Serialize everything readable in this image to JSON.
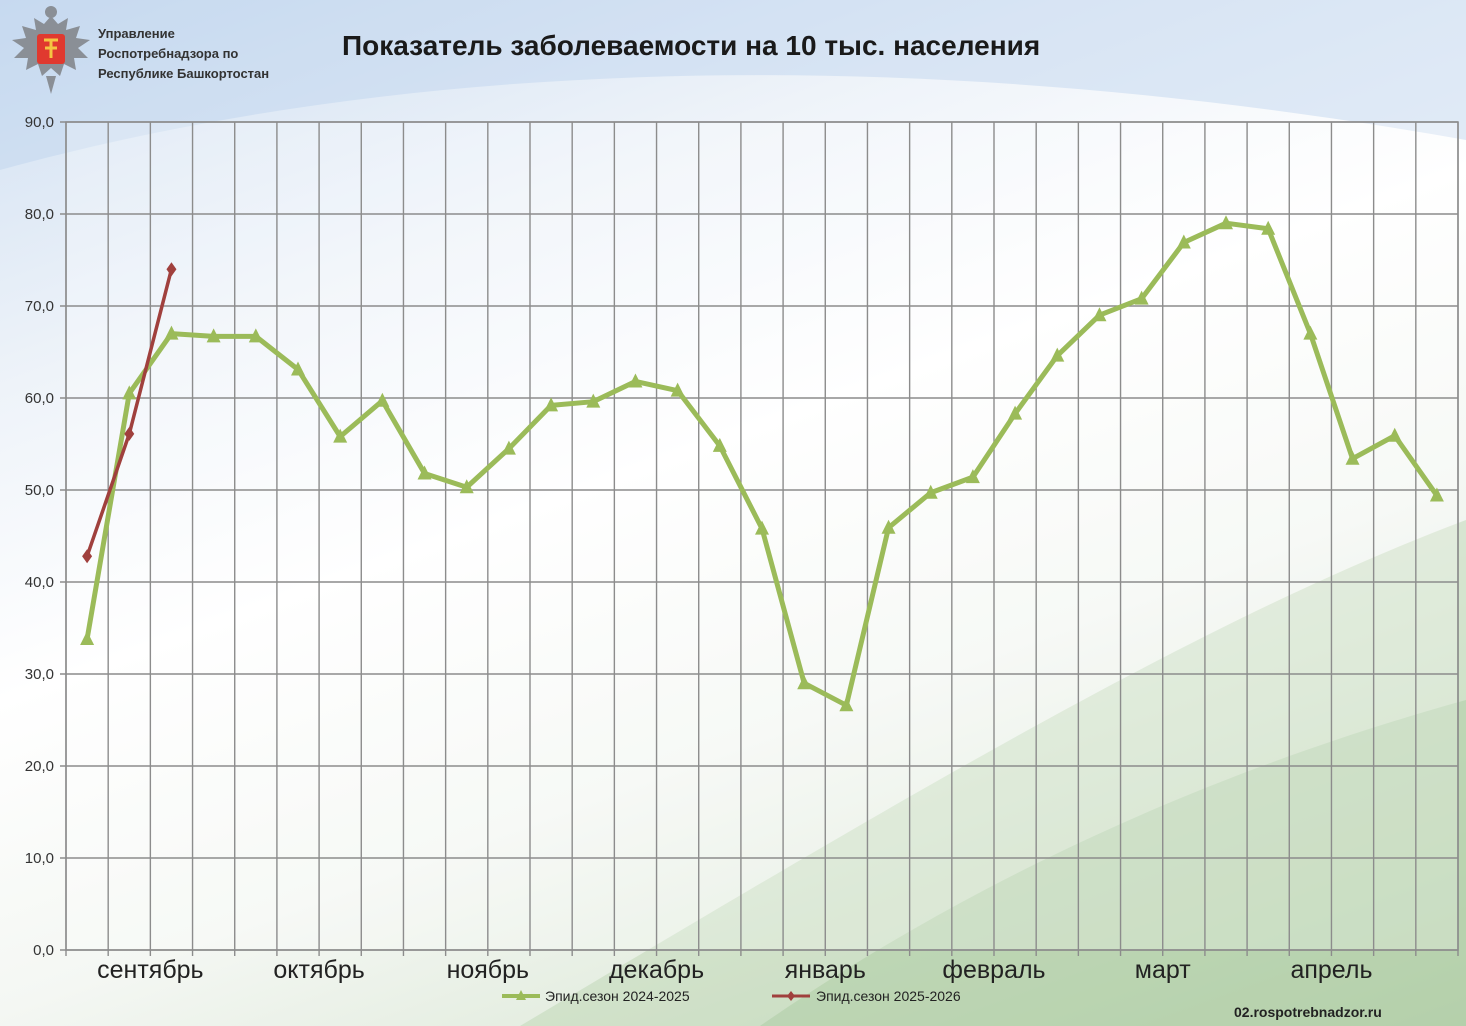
{
  "header": {
    "org_line1": "Управление",
    "org_line2": "Роспотребнадзора по",
    "org_line3": "Республике Башкортостан",
    "title": "Показатель заболеваемости на 10 тыс. населения"
  },
  "footer": {
    "site": "02.rospotrebnadzor.ru"
  },
  "colors": {
    "series1": "#9bbb59",
    "series2": "#a0403d",
    "grid": "#8c8c8c"
  },
  "chart_data": {
    "type": "line",
    "title": "Показатель заболеваемости на 10 тыс. населения",
    "xlabel": "",
    "ylabel": "",
    "ylim": [
      0,
      90
    ],
    "yticks": [
      "0,0",
      "10,0",
      "20,0",
      "30,0",
      "40,0",
      "50,0",
      "60,0",
      "70,0",
      "80,0",
      "90,0"
    ],
    "month_labels": [
      "сентябрь",
      "октябрь",
      "ноябрь",
      "декабрь",
      "январь",
      "февраль",
      "март",
      "апрель"
    ],
    "grid": true,
    "legend_position": "bottom",
    "series": [
      {
        "name": "Эпид.сезон  2024-2025",
        "marker": "triangle",
        "values": [
          33.8,
          60.5,
          67.0,
          66.7,
          66.7,
          63.1,
          55.8,
          59.7,
          51.8,
          50.3,
          54.5,
          59.2,
          59.6,
          61.8,
          60.8,
          54.8,
          45.8,
          29.0,
          26.6,
          45.9,
          49.7,
          51.4,
          58.3,
          64.6,
          69.0,
          70.8,
          76.9,
          79.0,
          78.4,
          67.0,
          53.4,
          55.9,
          49.4
        ]
      },
      {
        "name": "Эпид.сезон  2025-2026",
        "marker": "diamond",
        "values": [
          42.8,
          56.1,
          74.0
        ]
      }
    ]
  }
}
